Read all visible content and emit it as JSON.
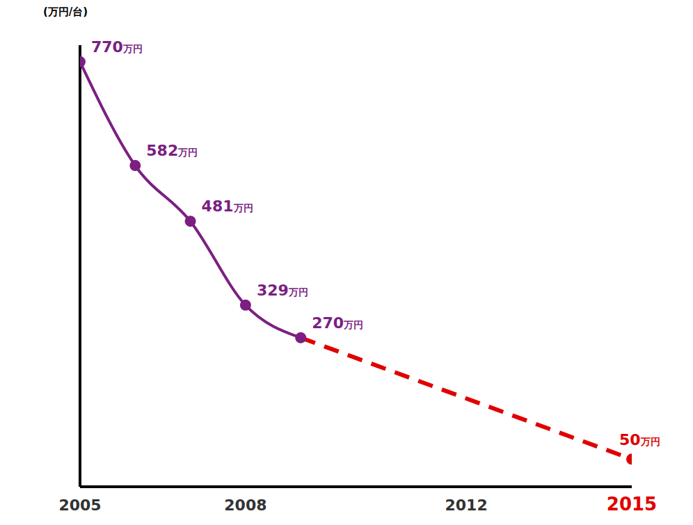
{
  "chart_data": {
    "type": "line",
    "y_label": "(万円/台)",
    "x": [
      2005,
      2006,
      2007,
      2008,
      2009,
      2015
    ],
    "xlim": [
      2005,
      2015
    ],
    "xticks": [
      2005,
      2008,
      2012,
      2015
    ],
    "ylim": [
      0,
      800
    ],
    "yticks": [
      0,
      200,
      400,
      600,
      800
    ],
    "tick_labels": "x",
    "grid": false,
    "data_labels": true,
    "series": [
      {
        "color": "#7b1f82",
        "line_style": "solid",
        "marker": "circle",
        "values": [
          770,
          582,
          481,
          329,
          270,
          null
        ],
        "value_labels": [
          "770万円",
          "582万円",
          "481万円",
          "329万円",
          "270万円",
          null
        ]
      },
      {
        "color": "#e00000",
        "line_style": "dashed",
        "marker": "circle",
        "values": [
          null,
          null,
          null,
          null,
          270,
          50
        ],
        "value_labels": [
          null,
          null,
          null,
          null,
          null,
          "50万円"
        ]
      }
    ]
  }
}
